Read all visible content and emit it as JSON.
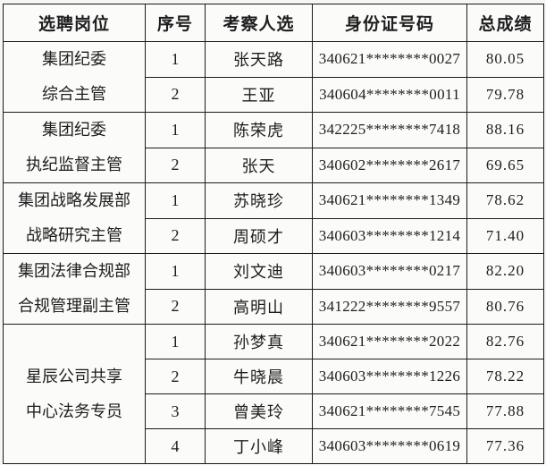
{
  "table": {
    "columns": [
      "选聘岗位",
      "序号",
      "考察人选",
      "身份证号码",
      "总成绩"
    ],
    "groups": [
      {
        "position_lines": [
          "集团纪委",
          "综合主管"
        ],
        "candidates": [
          {
            "no": "1",
            "name": "张天路",
            "id_number": "340621********0027",
            "score": "80.05"
          },
          {
            "no": "2",
            "name": "王亚",
            "id_number": "340604********0011",
            "score": "79.78"
          }
        ]
      },
      {
        "position_lines": [
          "集团纪委",
          "执纪监督主管"
        ],
        "candidates": [
          {
            "no": "1",
            "name": "陈荣虎",
            "id_number": "342225********7418",
            "score": "88.16"
          },
          {
            "no": "2",
            "name": "张天",
            "id_number": "340602********2617",
            "score": "69.65"
          }
        ]
      },
      {
        "position_lines": [
          "集团战略发展部",
          "战略研究主管"
        ],
        "candidates": [
          {
            "no": "1",
            "name": "苏晓珍",
            "id_number": "340621********1349",
            "score": "78.62"
          },
          {
            "no": "2",
            "name": "周硕才",
            "id_number": "340603********1214",
            "score": "71.40"
          }
        ]
      },
      {
        "position_lines": [
          "集团法律合规部",
          "合规管理副主管"
        ],
        "candidates": [
          {
            "no": "1",
            "name": "刘文迪",
            "id_number": "340603********0217",
            "score": "82.20"
          },
          {
            "no": "2",
            "name": "高明山",
            "id_number": "341222********9557",
            "score": "80.76"
          }
        ]
      },
      {
        "position_lines": [
          "星辰公司共享",
          "中心法务专员"
        ],
        "candidates": [
          {
            "no": "1",
            "name": "孙梦真",
            "id_number": "340621********2022",
            "score": "82.76"
          },
          {
            "no": "2",
            "name": "牛晓晨",
            "id_number": "340603********1226",
            "score": "78.22"
          },
          {
            "no": "3",
            "name": "曾美玲",
            "id_number": "340621********7545",
            "score": "77.88"
          },
          {
            "no": "4",
            "name": "丁小峰",
            "id_number": "340603********0619",
            "score": "77.36"
          }
        ]
      }
    ],
    "colors": {
      "border": "#1b1b1b",
      "text": "#1d1d1d",
      "page_background": "#f6f6f5",
      "cell_background": "#fbfbfa"
    }
  }
}
